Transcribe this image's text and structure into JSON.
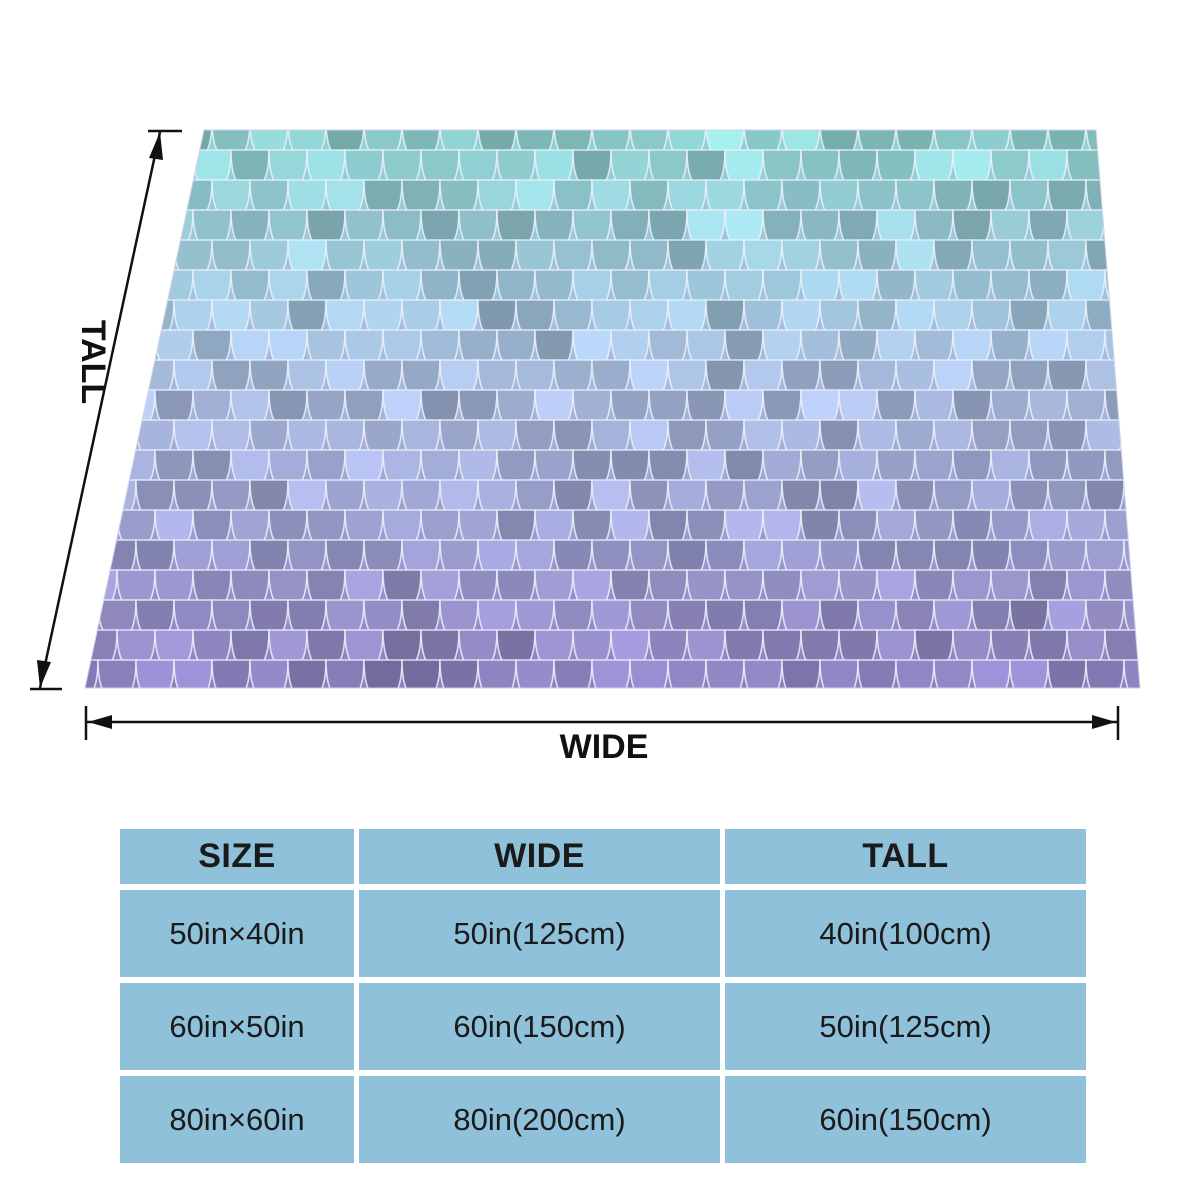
{
  "labels": {
    "tall": "TALL",
    "wide": "WIDE"
  },
  "colors": {
    "scale_top": "#8fd3d2",
    "scale_mid": "#a7b8dc",
    "scale_bottom": "#8e7fc0",
    "table_cell": "#8fc1db",
    "text": "#1a1a1a"
  },
  "table": {
    "headers": [
      "SIZE",
      "WIDE",
      "TALL"
    ],
    "rows": [
      [
        "50in×40in",
        "50in(125cm)",
        "40in(100cm)"
      ],
      [
        "60in×50in",
        "60in(150cm)",
        "50in(125cm)"
      ],
      [
        "80in×60in",
        "80in(200cm)",
        "60in(150cm)"
      ]
    ]
  }
}
